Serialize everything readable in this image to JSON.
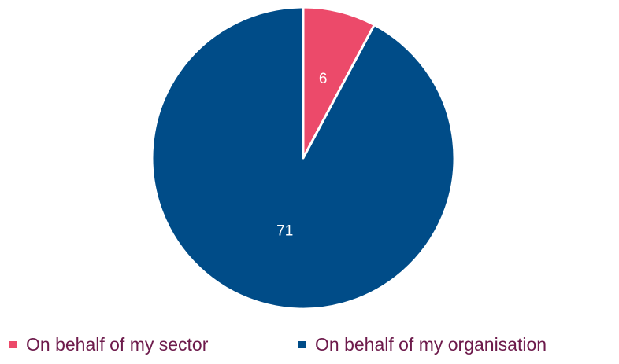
{
  "chart_data": {
    "type": "pie",
    "slices": [
      {
        "label": "On behalf of my sector",
        "value": 6,
        "color": "#ec4a6a"
      },
      {
        "label": "On behalf of my organisation",
        "value": 71,
        "color": "#004c88"
      }
    ],
    "start_angle_deg": 0,
    "direction": "clockwise",
    "data_labels": [
      "6",
      "71"
    ],
    "label_color": "#ffffff",
    "legend_position": "bottom",
    "legend_text_color": "#6d1a4b"
  }
}
